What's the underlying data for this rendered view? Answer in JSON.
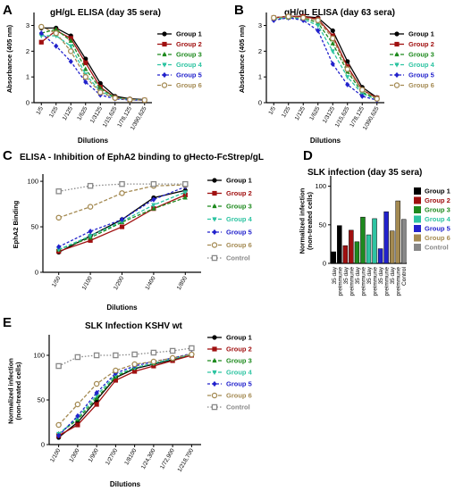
{
  "colors": {
    "group1": "#000000",
    "group2": "#a01010",
    "group3": "#1e8a1e",
    "group4": "#2ec4a2",
    "group5": "#2222cc",
    "group6": "#a48a52",
    "control": "#888888"
  },
  "legend": {
    "groups": [
      "Group 1",
      "Group 2",
      "Group 3",
      "Group 4",
      "Group 5",
      "Group 6"
    ],
    "groups_with_control": [
      "Group 1",
      "Group 2",
      "Group 3",
      "Group 4",
      "Group 5",
      "Group 6",
      "Control"
    ]
  },
  "panels": {
    "A": {
      "letter": "A",
      "title": "gH/gL ELISA (day 35 sera)"
    },
    "B": {
      "letter": "B",
      "title": "gH/gL ELISA (day 63 sera)"
    },
    "C": {
      "letter": "C",
      "title": "ELISA - Inhibition of EphA2 binding to gHecto-FcStrep/gL"
    },
    "D": {
      "letter": "D",
      "title": "SLK infection (day 35 sera)"
    },
    "E": {
      "letter": "E",
      "title": "SLK Infection KSHV wt"
    }
  },
  "chart_data": [
    {
      "id": "A",
      "type": "line",
      "title": "gH/gL ELISA (day 35 sera)",
      "xlabel": "Dilutions",
      "ylabel": "Absorbance (405 nm)",
      "categories": [
        "1/5",
        "1/25",
        "1/125",
        "1/625",
        "1/3125",
        "1/15,625",
        "1/78,125",
        "1/390,625"
      ],
      "yticks": [
        0,
        1,
        2,
        3
      ],
      "ylim": [
        0,
        3.4
      ],
      "series": [
        {
          "name": "Group 1",
          "values": [
            2.9,
            2.9,
            2.6,
            1.7,
            0.75,
            0.25,
            0.15,
            0.12
          ]
        },
        {
          "name": "Group 2",
          "values": [
            2.35,
            2.8,
            2.5,
            1.55,
            0.6,
            0.2,
            0.12,
            0.1
          ]
        },
        {
          "name": "Group 3",
          "values": [
            2.7,
            2.85,
            2.4,
            1.3,
            0.55,
            0.2,
            0.12,
            0.1
          ]
        },
        {
          "name": "Group 4",
          "values": [
            2.6,
            2.6,
            2.2,
            1.1,
            0.45,
            0.18,
            0.12,
            0.1
          ]
        },
        {
          "name": "Group 5",
          "values": [
            2.7,
            2.2,
            1.6,
            0.8,
            0.3,
            0.15,
            0.1,
            0.1
          ]
        },
        {
          "name": "Group 6",
          "values": [
            2.95,
            2.7,
            2.0,
            1.0,
            0.4,
            0.18,
            0.12,
            0.1
          ]
        }
      ]
    },
    {
      "id": "B",
      "type": "line",
      "title": "gH/gL ELISA (day 63 sera)",
      "xlabel": "Dilutions",
      "ylabel": "Absorbance (405 nm)",
      "categories": [
        "1/5",
        "1/25",
        "1/125",
        "1/625",
        "1/3125",
        "1/15,625",
        "1/78,125",
        "1/390,625"
      ],
      "yticks": [
        0,
        1,
        2,
        3
      ],
      "ylim": [
        0,
        3.4
      ],
      "series": [
        {
          "name": "Group 1",
          "values": [
            3.3,
            3.35,
            3.35,
            3.3,
            2.8,
            1.6,
            0.6,
            0.2
          ]
        },
        {
          "name": "Group 2",
          "values": [
            3.3,
            3.35,
            3.35,
            3.25,
            2.6,
            1.4,
            0.5,
            0.18
          ]
        },
        {
          "name": "Group 3",
          "values": [
            3.25,
            3.3,
            3.3,
            3.1,
            2.3,
            1.2,
            0.4,
            0.15
          ]
        },
        {
          "name": "Group 4",
          "values": [
            3.25,
            3.3,
            3.25,
            3.0,
            2.0,
            1.0,
            0.35,
            0.12
          ]
        },
        {
          "name": "Group 5",
          "values": [
            3.2,
            3.3,
            3.2,
            2.8,
            1.5,
            0.7,
            0.25,
            0.1
          ]
        },
        {
          "name": "Group 6",
          "values": [
            3.3,
            3.35,
            3.3,
            3.2,
            2.5,
            1.3,
            0.5,
            0.15
          ]
        }
      ]
    },
    {
      "id": "C",
      "type": "line",
      "title": "ELISA - Inhibition of EphA2 binding to gHecto-FcStrep/gL",
      "xlabel": "Dilutions",
      "ylabel": "EphA2 Binding",
      "categories": [
        "1/50",
        "1/100",
        "1/200",
        "1/400",
        "1/800"
      ],
      "yticks": [
        0,
        50,
        100
      ],
      "ylim": [
        0,
        105
      ],
      "series": [
        {
          "name": "Group 1",
          "values": [
            22,
            40,
            58,
            82,
            90
          ]
        },
        {
          "name": "Group 2",
          "values": [
            23,
            35,
            50,
            70,
            85
          ]
        },
        {
          "name": "Group 3",
          "values": [
            25,
            38,
            55,
            70,
            82
          ]
        },
        {
          "name": "Group 4",
          "values": [
            25,
            40,
            56,
            74,
            88
          ]
        },
        {
          "name": "Group 5",
          "values": [
            28,
            45,
            58,
            80,
            94
          ]
        },
        {
          "name": "Group 6",
          "values": [
            60,
            72,
            87,
            95,
            96
          ]
        },
        {
          "name": "Control",
          "values": [
            89,
            95,
            97,
            97,
            97
          ]
        }
      ]
    },
    {
      "id": "D",
      "type": "bar",
      "title": "SLK infection (day 35 sera)",
      "ylabel": "Normalized infection (non-treated cells)",
      "categories": [
        "35 day",
        "preimmune",
        "35 day",
        "preimmune",
        "35 day",
        "preimmune",
        "35 day",
        "preimmune",
        "35 day",
        "preimmune",
        "35 day",
        "preimmune",
        "Control"
      ],
      "bar_groups": [
        "Group 1",
        "Group 1",
        "Group 2",
        "Group 2",
        "Group 3",
        "Group 3",
        "Group 4",
        "Group 4",
        "Group 5",
        "Group 5",
        "Group 6",
        "Group 6",
        "Control"
      ],
      "values": [
        15,
        49,
        23,
        43,
        28,
        60,
        37,
        58,
        19,
        67,
        42,
        81,
        57
      ],
      "yticks": [
        0,
        50,
        100
      ],
      "ylim": [
        0,
        110
      ]
    },
    {
      "id": "E",
      "type": "line",
      "title": "SLK Infection KSHV wt",
      "xlabel": "Dilutions",
      "ylabel": "Normalized infection (non-treated cells)",
      "categories": [
        "1/100",
        "1/300",
        "1/900",
        "1/2700",
        "1/8100",
        "1/24,300",
        "1/72,900",
        "1/218,700"
      ],
      "yticks": [
        0,
        50,
        100
      ],
      "ylim": [
        0,
        120
      ],
      "series": [
        {
          "name": "Group 1",
          "values": [
            8,
            25,
            50,
            75,
            85,
            90,
            95,
            100
          ]
        },
        {
          "name": "Group 2",
          "values": [
            10,
            22,
            45,
            72,
            82,
            88,
            94,
            100
          ]
        },
        {
          "name": "Group 3",
          "values": [
            12,
            28,
            52,
            76,
            86,
            91,
            96,
            101
          ]
        },
        {
          "name": "Group 4",
          "values": [
            12,
            30,
            55,
            78,
            86,
            91,
            96,
            101
          ]
        },
        {
          "name": "Group 5",
          "values": [
            10,
            32,
            58,
            80,
            88,
            93,
            97,
            102
          ]
        },
        {
          "name": "Group 6",
          "values": [
            22,
            45,
            68,
            83,
            90,
            93,
            97,
            101
          ]
        },
        {
          "name": "Control",
          "values": [
            88,
            98,
            100,
            100,
            101,
            103,
            105,
            108
          ]
        }
      ]
    }
  ]
}
